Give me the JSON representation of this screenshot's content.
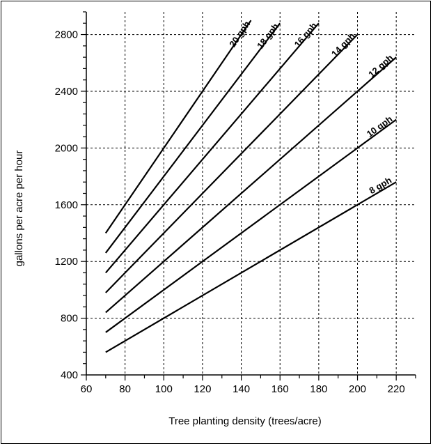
{
  "chart_data": {
    "type": "line",
    "title": "",
    "xlabel": "Tree planting density (trees/acre)",
    "ylabel": "gallons per acre per hour",
    "xlim": [
      60,
      230
    ],
    "ylim": [
      400,
      2960
    ],
    "x_ticks": [
      "60",
      "80",
      "100",
      "120",
      "140",
      "160",
      "180",
      "200",
      "220"
    ],
    "y_ticks": [
      "400",
      "800",
      "1200",
      "1600",
      "2000",
      "2400",
      "2800"
    ],
    "grid": true,
    "series": [
      {
        "name": "8 gph",
        "x": [
          70,
          220
        ],
        "y": [
          560,
          1760
        ]
      },
      {
        "name": "10 gph",
        "x": [
          70,
          220
        ],
        "y": [
          700,
          2200
        ]
      },
      {
        "name": "12 gph",
        "x": [
          70,
          220
        ],
        "y": [
          840,
          2640
        ]
      },
      {
        "name": "14 gph",
        "x": [
          70,
          200
        ],
        "y": [
          980,
          2800
        ]
      },
      {
        "name": "16 gph",
        "x": [
          70,
          180
        ],
        "y": [
          1120,
          2880
        ]
      },
      {
        "name": "18 gph",
        "x": [
          70,
          160
        ],
        "y": [
          1260,
          2880
        ]
      },
      {
        "name": "20 gph",
        "x": [
          70,
          145
        ],
        "y": [
          1400,
          2900
        ]
      }
    ]
  }
}
